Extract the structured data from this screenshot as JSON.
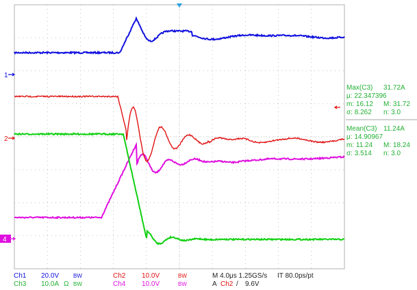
{
  "screen": {
    "background": "#ffffff",
    "grid_color": "#b0b0b0"
  },
  "channels": [
    {
      "id": "1",
      "color": "#1010e0"
    },
    {
      "id": "2",
      "color": "#e01010"
    },
    {
      "id": "3",
      "color": "#10d010"
    },
    {
      "id": "4",
      "color": "#e010e0"
    }
  ],
  "markers": {
    "ch1": "1",
    "ch2": "2",
    "ch4": "4"
  },
  "measurements": {
    "max": {
      "title": "Max(C3)",
      "value": "31.72A",
      "mu": "μ: 22.347396",
      "m": "m: 16.12",
      "M": "M: 31.72",
      "sigma": "σ: 8.262",
      "n": "n: 3.0"
    },
    "mean": {
      "title": "Mean(C3)",
      "value": "11.24A",
      "mu": "μ: 14.90967",
      "m": "m: 11.24",
      "M": "M: 18.24",
      "sigma": "σ: 3.514",
      "n": "n: 3.0"
    }
  },
  "status_bar": {
    "ch1_label": "Ch1",
    "ch1_scale": "20.0V",
    "ch1_bw": "BW",
    "ch3_label": "Ch3",
    "ch3_scale": "10.0A",
    "ch3_omega": "Ω",
    "ch3_bw": "BW",
    "ch2_label": "Ch2",
    "ch2_scale": "10.0V",
    "ch2_bw": "BW",
    "ch4_label": "Ch4",
    "ch4_scale": "10.0V",
    "ch4_bw": "BW",
    "timebase": "M 4.0μs 1.25GS/s",
    "record": "IT 80.0ps/pt",
    "trigger": "A",
    "trigger_ch": "Ch2",
    "trigger_slope": "/",
    "trigger_level": "9.6V"
  }
}
